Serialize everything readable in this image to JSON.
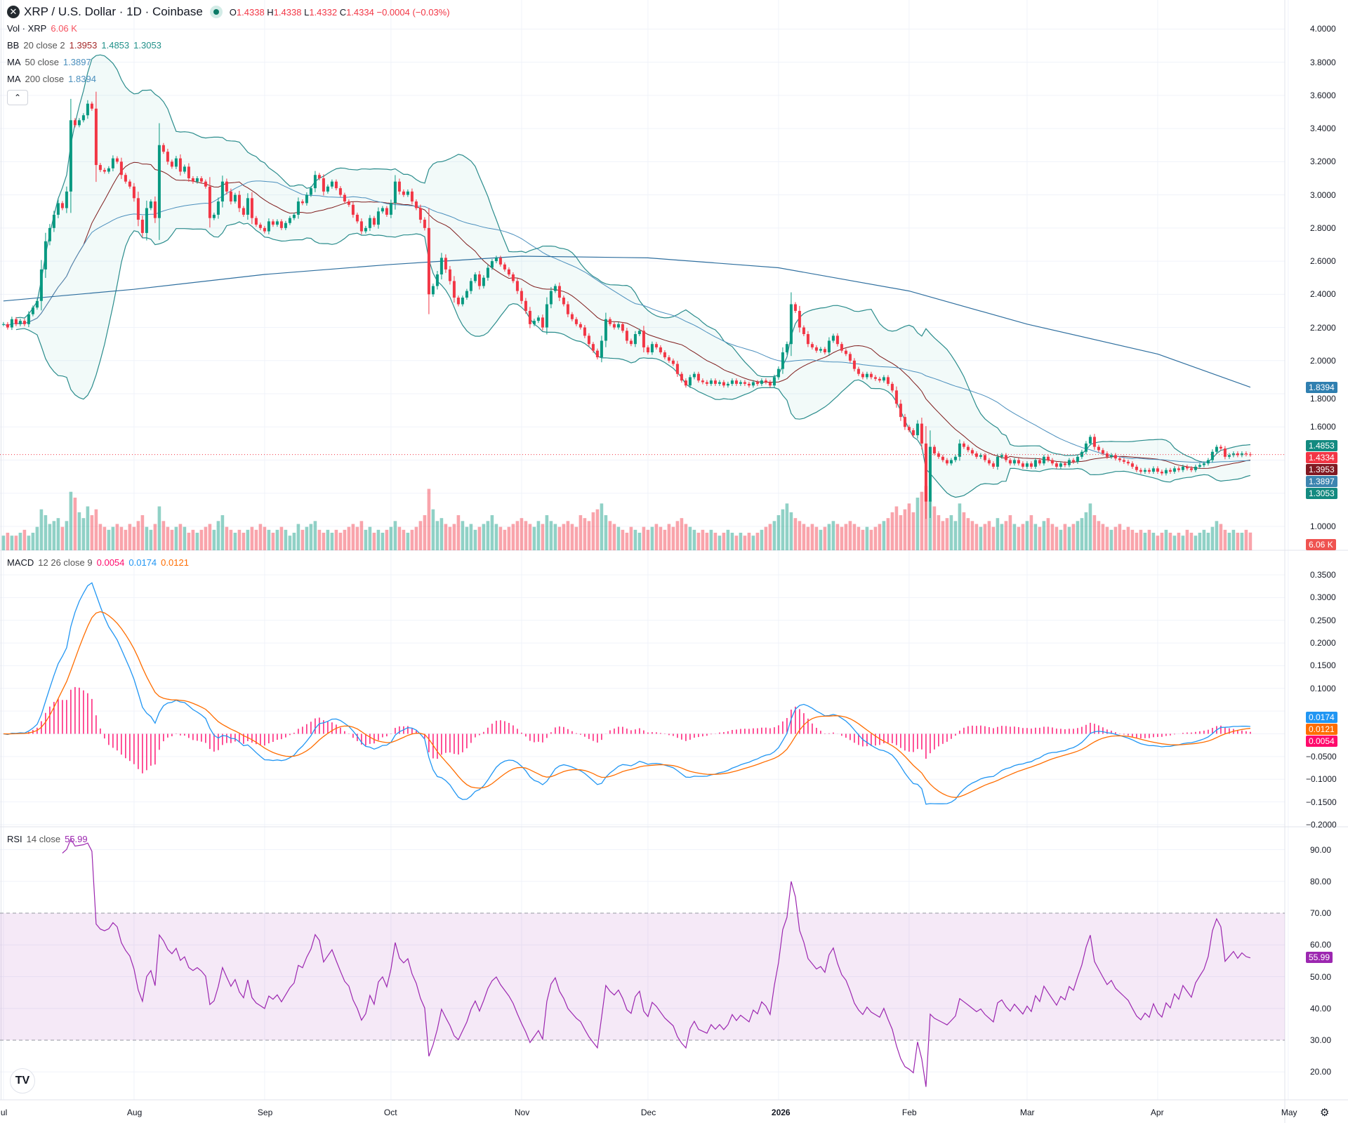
{
  "header": {
    "symbol_icon": "xrp-logo-icon",
    "title": "XRP / U.S. Dollar · 1D · Coinbase",
    "market_status": "open",
    "open_label": "O",
    "open": "1.4338",
    "high_label": "H",
    "high": "1.4338",
    "low_label": "L",
    "low": "1.4332",
    "close_label": "C",
    "close": "1.4334",
    "change": "−0.0004 (−0.03%)"
  },
  "legends": {
    "vol": {
      "name": "Vol · XRP",
      "value": "6.06 K"
    },
    "bb": {
      "name": "BB",
      "params": "20 close 2",
      "basis": "1.3953",
      "upper": "1.4853",
      "lower": "1.3053"
    },
    "ma50": {
      "name": "MA",
      "params": "50 close",
      "value": "1.3897"
    },
    "ma200": {
      "name": "MA",
      "params": "200 close",
      "value": "1.8394"
    },
    "macd": {
      "name": "MACD",
      "params": "12 26 close 9",
      "hist": "0.0054",
      "macd": "0.0174",
      "signal": "0.0121"
    },
    "rsi": {
      "name": "RSI",
      "params": "14 close",
      "value": "55.99"
    }
  },
  "collapse_icon": "chevron-up-icon",
  "colors": {
    "up": "#089981",
    "down": "#f23645",
    "bb_band": "#2a8c8c",
    "bb_basis": "#7f1d1d",
    "ma50": "#4b8fbd",
    "ma200": "#2f6f9f",
    "macd": "#2196f3",
    "signal": "#ff6d00",
    "hist": "#ff0a6c",
    "rsi": "#9c27b0"
  },
  "price_axis": {
    "ticks": [
      "4.0000",
      "3.8000",
      "3.6000",
      "3.4000",
      "3.2000",
      "3.0000",
      "2.8000",
      "2.6000",
      "2.4000",
      "2.2000",
      "2.0000",
      "1.8000",
      "1.6000",
      "1.0000"
    ]
  },
  "macd_axis": {
    "ticks": [
      "0.3500",
      "0.3000",
      "0.2500",
      "0.2000",
      "0.1500",
      "0.1000",
      "−0.0500",
      "−0.1000",
      "−0.1500",
      "−0.2000"
    ]
  },
  "rsi_axis": {
    "ticks": [
      "90.00",
      "80.00",
      "70.00",
      "60.00",
      "50.00",
      "40.00",
      "30.00",
      "20.00"
    ],
    "upper_band": 70,
    "lower_band": 30
  },
  "time_axis": {
    "labels": [
      "Jul",
      "Aug",
      "Sep",
      "Oct",
      "Nov",
      "Dec",
      "2026",
      "Feb",
      "Mar",
      "Apr",
      "May"
    ]
  },
  "badges": {
    "bb_upper": "1.4853",
    "last_price": "1.4334",
    "bb_basis": "1.3953",
    "ma50": "1.3897",
    "bb_lower": "1.3053",
    "ma200": "1.8394",
    "volume": "6.06 K",
    "macd": "0.0174",
    "signal": "0.0121",
    "hist": "0.0054",
    "rsi": "55.99"
  },
  "chart_data": {
    "type": "candlestick",
    "scale": "linear",
    "grid": true,
    "months": [
      {
        "label": "Jul",
        "closes": [
          2.22,
          2.2,
          2.25,
          2.22,
          2.24,
          2.22,
          2.28,
          2.32,
          2.36,
          2.55,
          2.72,
          2.8,
          2.88,
          2.95,
          2.92,
          3.02,
          3.45,
          3.42,
          3.45,
          3.48,
          3.55,
          3.52,
          3.18,
          3.15,
          3.14,
          3.16,
          3.22,
          3.2,
          3.12,
          3.08,
          3.05
        ],
        "volumes": [
          5,
          6,
          5,
          5,
          6,
          7,
          5,
          6,
          8,
          14,
          12,
          9,
          10,
          11,
          8,
          10,
          20,
          18,
          13,
          11,
          15,
          12,
          14,
          9,
          8,
          7,
          8,
          9,
          8,
          7,
          9
        ]
      },
      {
        "label": "Aug",
        "closes": [
          2.98,
          2.85,
          2.77,
          2.92,
          2.96,
          2.86,
          3.3,
          3.26,
          3.2,
          3.17,
          3.22,
          3.14,
          3.17,
          3.1,
          3.08,
          3.1,
          3.08,
          3.05,
          2.86,
          2.88,
          2.96,
          3.08,
          3.02,
          2.96,
          3.0,
          2.92,
          2.88,
          2.98,
          2.86,
          2.82,
          2.8
        ],
        "volumes": [
          8,
          10,
          12,
          8,
          7,
          9,
          15,
          10,
          8,
          7,
          8,
          9,
          8,
          6,
          7,
          6,
          7,
          8,
          9,
          7,
          10,
          12,
          8,
          7,
          6,
          7,
          6,
          7,
          8,
          7,
          9
        ]
      },
      {
        "label": "Sep",
        "closes": [
          2.78,
          2.84,
          2.82,
          2.84,
          2.8,
          2.83,
          2.86,
          2.88,
          2.96,
          2.95,
          3.0,
          3.04,
          3.12,
          3.1,
          3.02,
          3.05,
          3.08,
          3.04,
          3.0,
          2.96,
          2.94,
          2.88,
          2.84,
          2.78,
          2.8,
          2.86,
          2.82,
          2.9,
          2.92,
          2.88
        ],
        "volumes": [
          8,
          7,
          6,
          7,
          8,
          7,
          5,
          6,
          9,
          7,
          8,
          9,
          10,
          7,
          6,
          7,
          6,
          7,
          6,
          7,
          8,
          9,
          8,
          10,
          7,
          8,
          6,
          7,
          6,
          7
        ]
      },
      {
        "label": "Oct",
        "closes": [
          2.95,
          3.08,
          3.02,
          3.0,
          3.02,
          2.96,
          2.92,
          2.85,
          2.8,
          2.4,
          2.45,
          2.52,
          2.62,
          2.55,
          2.48,
          2.38,
          2.34,
          2.38,
          2.42,
          2.48,
          2.52,
          2.45,
          2.5,
          2.56,
          2.6,
          2.62,
          2.58,
          2.55,
          2.52,
          2.48,
          2.42
        ],
        "volumes": [
          8,
          10,
          8,
          7,
          6,
          7,
          8,
          10,
          12,
          21,
          14,
          10,
          11,
          9,
          8,
          9,
          12,
          10,
          8,
          9,
          7,
          8,
          9,
          10,
          12,
          9,
          8,
          7,
          8,
          9,
          10
        ]
      },
      {
        "label": "Nov",
        "closes": [
          2.36,
          2.3,
          2.22,
          2.24,
          2.26,
          2.2,
          2.34,
          2.42,
          2.45,
          2.38,
          2.34,
          2.28,
          2.25,
          2.22,
          2.2,
          2.15,
          2.1,
          2.06,
          2.02,
          2.12,
          2.25,
          2.22,
          2.2,
          2.22,
          2.18,
          2.12,
          2.1,
          2.16,
          2.18,
          2.08
        ],
        "volumes": [
          11,
          10,
          9,
          8,
          10,
          9,
          12,
          10,
          9,
          8,
          9,
          10,
          9,
          8,
          12,
          11,
          10,
          13,
          14,
          16,
          12,
          10,
          9,
          8,
          7,
          6,
          8,
          7,
          6,
          8
        ]
      },
      {
        "label": "Dec",
        "closes": [
          2.05,
          2.1,
          2.08,
          2.05,
          2.02,
          2.0,
          1.98,
          1.92,
          1.88,
          1.85,
          1.9,
          1.92,
          1.88,
          1.87,
          1.86,
          1.88,
          1.86,
          1.87,
          1.85,
          1.86,
          1.88,
          1.86,
          1.87,
          1.86,
          1.85,
          1.87,
          1.86,
          1.88,
          1.87,
          1.85,
          1.9
        ],
        "volumes": [
          7,
          8,
          9,
          8,
          7,
          9,
          8,
          10,
          11,
          9,
          8,
          7,
          6,
          7,
          6,
          7,
          6,
          5,
          6,
          7,
          6,
          5,
          6,
          5,
          6,
          5,
          6,
          7,
          8,
          9,
          10
        ]
      },
      {
        "label": "2026",
        "closes": [
          1.95,
          2.05,
          2.1,
          2.34,
          2.3,
          2.2,
          2.16,
          2.1,
          2.08,
          2.06,
          2.07,
          2.05,
          2.12,
          2.15,
          2.1,
          2.06,
          2.04,
          2.0,
          1.95,
          1.92,
          1.9,
          1.92,
          1.9,
          1.89,
          1.88,
          1.9,
          1.86,
          1.82,
          1.74,
          1.66,
          1.6
        ],
        "volumes": [
          12,
          14,
          16,
          13,
          11,
          10,
          9,
          8,
          9,
          8,
          7,
          8,
          9,
          10,
          9,
          8,
          9,
          10,
          9,
          8,
          7,
          8,
          7,
          8,
          9,
          10,
          11,
          13,
          15,
          12,
          14
        ]
      },
      {
        "label": "Feb",
        "closes": [
          1.58,
          1.55,
          1.62,
          1.5,
          1.15,
          1.48,
          1.44,
          1.42,
          1.4,
          1.38,
          1.4,
          1.42,
          1.5,
          1.48,
          1.46,
          1.44,
          1.42,
          1.43,
          1.4,
          1.38,
          1.36,
          1.42,
          1.43,
          1.4,
          1.38,
          1.4,
          1.38,
          1.36
        ],
        "volumes": [
          16,
          13,
          18,
          20,
          22,
          17,
          15,
          12,
          10,
          11,
          12,
          10,
          16,
          13,
          11,
          10,
          9,
          8,
          9,
          10,
          8,
          11,
          9,
          10,
          12,
          9,
          8,
          9
        ]
      },
      {
        "label": "Mar",
        "closes": [
          1.38,
          1.36,
          1.4,
          1.38,
          1.42,
          1.4,
          1.38,
          1.36,
          1.38,
          1.37,
          1.4,
          1.39,
          1.42,
          1.45,
          1.5,
          1.54,
          1.48,
          1.46,
          1.44,
          1.42,
          1.43,
          1.41,
          1.4,
          1.39,
          1.38,
          1.36,
          1.34,
          1.33,
          1.34,
          1.33,
          1.35
        ],
        "volumes": [
          10,
          12,
          9,
          8,
          10,
          11,
          9,
          8,
          7,
          9,
          8,
          9,
          10,
          11,
          13,
          16,
          12,
          10,
          9,
          8,
          7,
          8,
          9,
          7,
          8,
          7,
          6,
          7,
          6,
          7,
          6
        ]
      },
      {
        "label": "Apr",
        "closes": [
          1.33,
          1.32,
          1.34,
          1.33,
          1.35,
          1.34,
          1.36,
          1.35,
          1.34,
          1.36,
          1.37,
          1.38,
          1.4,
          1.45,
          1.48,
          1.47,
          1.42,
          1.43,
          1.44,
          1.43,
          1.44,
          1.435,
          1.4334
        ],
        "volumes": [
          5,
          6,
          7,
          6,
          5,
          6,
          5,
          7,
          6,
          5,
          6,
          7,
          6,
          8,
          10,
          9,
          7,
          6,
          7,
          6,
          6,
          7,
          6.06
        ]
      }
    ],
    "ma200_by_month": {
      "Jul": 2.36,
      "Aug": 2.43,
      "Sep": 2.52,
      "Oct": 2.58,
      "Nov": 2.63,
      "Dec": 2.62,
      "2026": 2.56,
      "Feb": 2.42,
      "Mar": 2.22,
      "Apr": 2.04,
      "last": 1.8394
    },
    "price_range": [
      1.0,
      4.0
    ],
    "macd_range": [
      -0.2,
      0.35
    ],
    "rsi_range": [
      20,
      90
    ]
  },
  "branding": {
    "logo": "TV"
  },
  "settings_icon": "gear-icon"
}
